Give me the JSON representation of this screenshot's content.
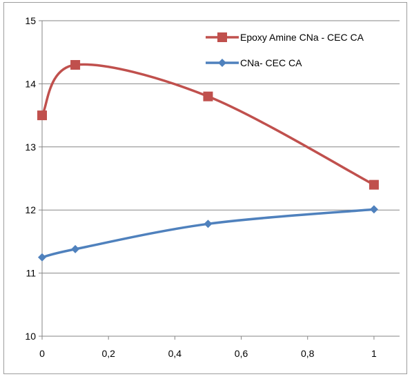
{
  "chart_data": {
    "type": "line",
    "smooth": true,
    "title": "",
    "xlabel": "",
    "ylabel": "",
    "xlim": [
      0,
      1.1
    ],
    "ylim": [
      10,
      15
    ],
    "x_ticks": [
      0,
      0.2,
      0.4,
      0.6,
      0.8,
      1
    ],
    "x_tick_labels": [
      "0",
      "0,2",
      "0,4",
      "0,6",
      "0,8",
      "1"
    ],
    "y_ticks": [
      10,
      11,
      12,
      13,
      14,
      15
    ],
    "y_tick_labels": [
      "10",
      "11",
      "12",
      "13",
      "14",
      "15"
    ],
    "grid": {
      "horizontal": true,
      "vertical": false
    },
    "legend_position": "top-right",
    "series": [
      {
        "name": "Epoxy Amine CNa  - CEC CA",
        "color": "#c0504d",
        "marker": "square",
        "x": [
          0,
          0.1,
          0.5,
          1
        ],
        "y": [
          13.5,
          14.3,
          13.8,
          12.4
        ]
      },
      {
        "name": "CNa- CEC CA",
        "color": "#4f81bd",
        "marker": "diamond",
        "x": [
          0,
          0.1,
          0.5,
          1
        ],
        "y": [
          11.25,
          11.38,
          11.78,
          12.01
        ]
      }
    ]
  }
}
